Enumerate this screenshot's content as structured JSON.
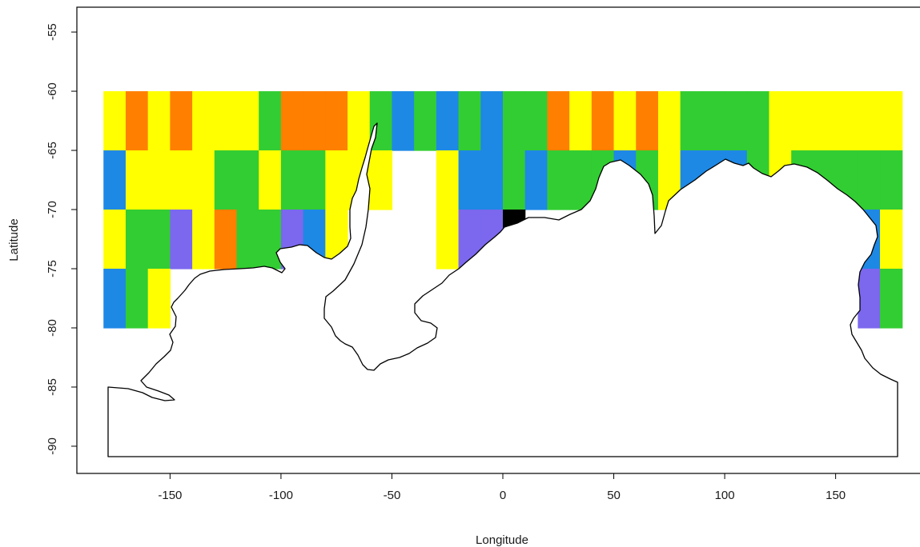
{
  "chart_data": {
    "type": "heatmap",
    "title": "",
    "xlabel": "Longitude",
    "ylabel": "Latitude",
    "xlim": [
      -192,
      192
    ],
    "ylim": [
      -92.3,
      -52.9
    ],
    "x_ticks": [
      -150,
      -100,
      -50,
      0,
      50,
      100,
      150
    ],
    "y_ticks": [
      -55,
      -60,
      -65,
      -70,
      -75,
      -80,
      -85,
      -90
    ],
    "grid": false,
    "legend": "none",
    "colors": {
      "yellow": "#ffff00",
      "orange": "#ff7f00",
      "green": "#32cd32",
      "blue": "#1e88e5",
      "purple": "#7b68ee",
      "black": "#000000"
    },
    "cell_size": {
      "lon_deg": 10,
      "lat_deg": 5
    },
    "rows": [
      {
        "lat_top": -60,
        "lat_bottom": -65,
        "cells": [
          [
            -180,
            "yellow"
          ],
          [
            -170,
            "orange"
          ],
          [
            -160,
            "yellow"
          ],
          [
            -150,
            "orange"
          ],
          [
            -140,
            "yellow"
          ],
          [
            -130,
            "yellow"
          ],
          [
            -120,
            "yellow"
          ],
          [
            -110,
            "green"
          ],
          [
            -100,
            "orange"
          ],
          [
            -90,
            "orange"
          ],
          [
            -80,
            "orange"
          ],
          [
            -70,
            "yellow"
          ],
          [
            -60,
            "green"
          ],
          [
            -50,
            "blue"
          ],
          [
            -40,
            "green"
          ],
          [
            -30,
            "blue"
          ],
          [
            -20,
            "green"
          ],
          [
            -10,
            "blue"
          ],
          [
            0,
            "green"
          ],
          [
            10,
            "green"
          ],
          [
            20,
            "orange"
          ],
          [
            30,
            "yellow"
          ],
          [
            40,
            "orange"
          ],
          [
            50,
            "yellow"
          ],
          [
            60,
            "orange"
          ],
          [
            70,
            "yellow"
          ],
          [
            80,
            "green"
          ],
          [
            90,
            "green"
          ],
          [
            100,
            "green"
          ],
          [
            110,
            "green"
          ],
          [
            120,
            "yellow"
          ],
          [
            130,
            "yellow"
          ],
          [
            140,
            "yellow"
          ],
          [
            150,
            "yellow"
          ],
          [
            160,
            "yellow"
          ],
          [
            170,
            "yellow"
          ]
        ]
      },
      {
        "lat_top": -65,
        "lat_bottom": -70,
        "cells": [
          [
            -180,
            "blue"
          ],
          [
            -170,
            "yellow"
          ],
          [
            -160,
            "yellow"
          ],
          [
            -150,
            "yellow"
          ],
          [
            -140,
            "yellow"
          ],
          [
            -130,
            "green"
          ],
          [
            -120,
            "green"
          ],
          [
            -110,
            "yellow"
          ],
          [
            -100,
            "green"
          ],
          [
            -90,
            "green"
          ],
          [
            -80,
            "yellow"
          ],
          [
            -70,
            "yellow"
          ],
          [
            -60,
            "yellow"
          ],
          [
            -30,
            "yellow"
          ],
          [
            -20,
            "blue"
          ],
          [
            -10,
            "blue"
          ],
          [
            0,
            "green"
          ],
          [
            10,
            "blue"
          ],
          [
            20,
            "green"
          ],
          [
            30,
            "green"
          ],
          [
            40,
            "green"
          ],
          [
            50,
            "blue"
          ],
          [
            60,
            "green"
          ],
          [
            70,
            "yellow"
          ],
          [
            80,
            "blue"
          ],
          [
            90,
            "blue"
          ],
          [
            100,
            "blue"
          ],
          [
            110,
            "green"
          ],
          [
            120,
            "yellow"
          ],
          [
            130,
            "green"
          ],
          [
            140,
            "green"
          ],
          [
            150,
            "green"
          ],
          [
            160,
            "green"
          ],
          [
            170,
            "green"
          ]
        ]
      },
      {
        "lat_top": -70,
        "lat_bottom": -75,
        "cells": [
          [
            -180,
            "yellow"
          ],
          [
            -170,
            "green"
          ],
          [
            -160,
            "green"
          ],
          [
            -150,
            "purple"
          ],
          [
            -140,
            "yellow"
          ],
          [
            -130,
            "orange"
          ],
          [
            -120,
            "green"
          ],
          [
            -110,
            "green"
          ],
          [
            -100,
            "purple"
          ],
          [
            -90,
            "blue"
          ],
          [
            -80,
            "yellow"
          ],
          [
            -30,
            "yellow"
          ],
          [
            -20,
            "purple"
          ],
          [
            -10,
            "purple"
          ],
          [
            0,
            "black"
          ],
          [
            160,
            "blue"
          ],
          [
            170,
            "yellow"
          ]
        ]
      },
      {
        "lat_top": -75,
        "lat_bottom": -80,
        "cells": [
          [
            -180,
            "blue"
          ],
          [
            -170,
            "green"
          ],
          [
            -160,
            "yellow"
          ],
          [
            160,
            "purple"
          ],
          [
            170,
            "green"
          ]
        ]
      }
    ]
  }
}
